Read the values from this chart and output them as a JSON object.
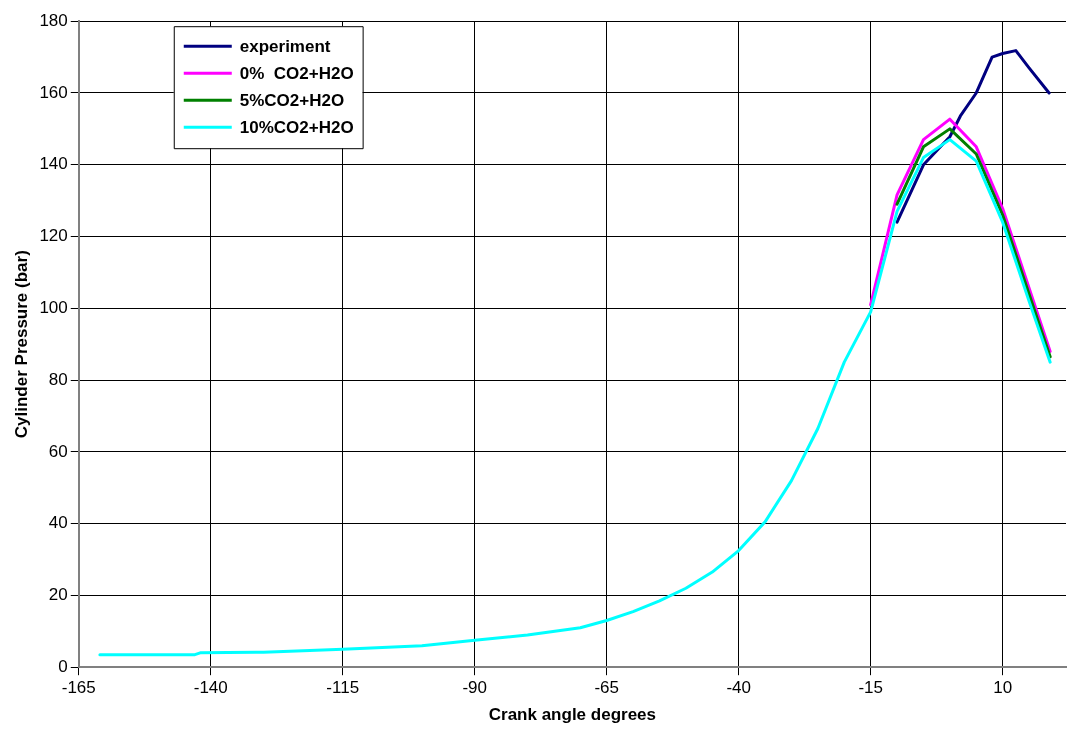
{
  "chart_data": {
    "type": "line",
    "xlabel": "Crank angle degrees",
    "ylabel": "Cylinder Pressure (bar)",
    "xlim": [
      -165,
      22
    ],
    "xticks": [
      -165,
      -140,
      -115,
      -90,
      -65,
      -40,
      -15,
      10
    ],
    "ylim": [
      0,
      180
    ],
    "yticks": [
      0,
      20,
      40,
      60,
      80,
      100,
      120,
      140,
      160,
      180
    ],
    "grid": true,
    "legend": "top left",
    "marker": "none",
    "line_style": "solid",
    "series": [
      {
        "name": "experiment",
        "color": "#000080",
        "x": [
          -10,
          -5,
          0,
          2,
          5,
          8,
          10,
          12.5,
          15,
          18.8
        ],
        "values": [
          124,
          140,
          147.8,
          153.6,
          160,
          170,
          171,
          171.8,
          167,
          160
        ]
      },
      {
        "name": "0%  CO2+H2O",
        "color": "#ff00ff",
        "x": [
          -15,
          -10,
          -5,
          0,
          5,
          10,
          15,
          19
        ],
        "values": [
          101,
          131.6,
          147,
          152.7,
          145,
          127.8,
          105.7,
          88
        ]
      },
      {
        "name": "5%CO2+H2O",
        "color": "#008000",
        "x": [
          -10,
          -5,
          0,
          5,
          10,
          15,
          19
        ],
        "values": [
          129,
          145,
          150,
          143,
          126,
          104,
          86.5
        ]
      },
      {
        "name": "10%CO2+H2O",
        "color": "#00ffff",
        "x": [
          -161,
          -143,
          -142,
          -130,
          -115,
          -100,
          -90,
          -80,
          -70,
          -65,
          -60,
          -55,
          -50,
          -45,
          -40,
          -35,
          -30,
          -25,
          -20,
          -15,
          -10,
          -5,
          0,
          5,
          10,
          15,
          19
        ],
        "values": [
          3.5,
          3.5,
          4,
          4.2,
          5,
          6,
          7.5,
          9,
          11,
          13,
          15.5,
          18.5,
          22,
          26.5,
          32.5,
          40.5,
          52,
          66.5,
          85,
          99,
          127,
          142,
          147,
          141,
          124,
          102,
          85
        ]
      }
    ]
  }
}
